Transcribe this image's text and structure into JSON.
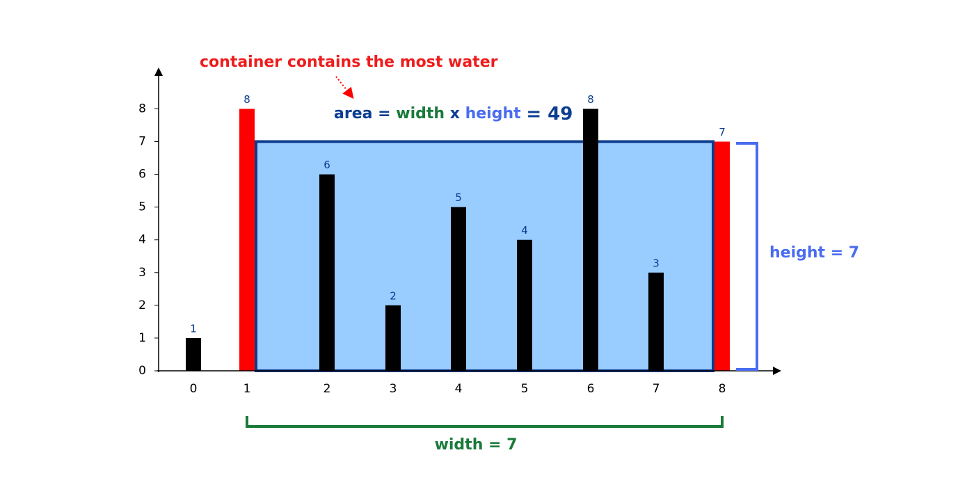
{
  "chart_data": {
    "type": "bar",
    "categories": [
      "0",
      "1",
      "2",
      "3",
      "4",
      "5",
      "6",
      "7",
      "8"
    ],
    "values": [
      1,
      8,
      6,
      2,
      5,
      4,
      8,
      3,
      7
    ],
    "colors": [
      "#000000",
      "#ff0000",
      "#000000",
      "#000000",
      "#000000",
      "#000000",
      "#000000",
      "#000000",
      "#ff0000"
    ],
    "ylim": [
      0,
      9.2
    ],
    "yticks": [
      0,
      1,
      2,
      3,
      4,
      5,
      6,
      7,
      8
    ],
    "annotations": {
      "caption": "container contains the most water",
      "formula": [
        "area",
        "=",
        "width",
        "x",
        "height",
        "= 49"
      ],
      "height_label": "height = 7",
      "width_label": "width = 7"
    }
  }
}
